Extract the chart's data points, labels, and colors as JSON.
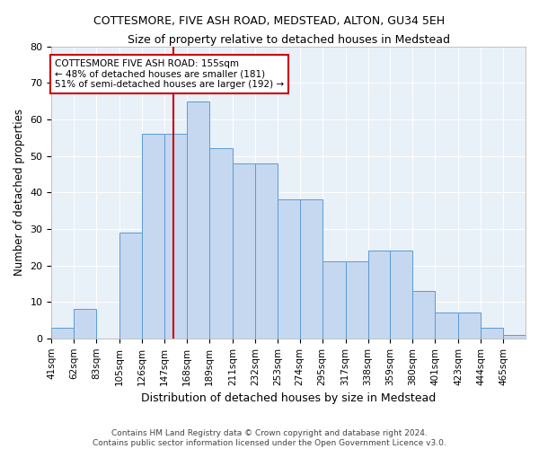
{
  "title": "COTTESMORE, FIVE ASH ROAD, MEDSTEAD, ALTON, GU34 5EH",
  "subtitle": "Size of property relative to detached houses in Medstead",
  "xlabel": "Distribution of detached houses by size in Medstead",
  "ylabel": "Number of detached properties",
  "bin_labels": [
    "41sqm",
    "62sqm",
    "83sqm",
    "105sqm",
    "126sqm",
    "147sqm",
    "168sqm",
    "189sqm",
    "211sqm",
    "232sqm",
    "253sqm",
    "274sqm",
    "295sqm",
    "317sqm",
    "338sqm",
    "359sqm",
    "380sqm",
    "401sqm",
    "423sqm",
    "444sqm",
    "465sqm"
  ],
  "bin_edges": [
    41,
    62,
    83,
    105,
    126,
    147,
    168,
    189,
    211,
    232,
    253,
    274,
    295,
    317,
    338,
    359,
    380,
    401,
    423,
    444,
    465,
    486
  ],
  "bar_heights": [
    3,
    8,
    0,
    29,
    56,
    56,
    65,
    52,
    48,
    48,
    38,
    38,
    21,
    21,
    24,
    24,
    13,
    7,
    7,
    3,
    1
  ],
  "bar_color": "#c5d8f0",
  "bar_edge_color": "#5b9bd5",
  "vline_x": 155,
  "vline_color": "#cc0000",
  "annotation_text": "COTTESMORE FIVE ASH ROAD: 155sqm\n← 48% of detached houses are smaller (181)\n51% of semi-detached houses are larger (192) →",
  "annotation_box_color": "#ffffff",
  "annotation_box_edge": "#cc0000",
  "ylim": [
    0,
    80
  ],
  "yticks": [
    0,
    10,
    20,
    30,
    40,
    50,
    60,
    70,
    80
  ],
  "background_color": "#e8f0f8",
  "footer1": "Contains HM Land Registry data © Crown copyright and database right 2024.",
  "footer2": "Contains public sector information licensed under the Open Government Licence v3.0."
}
